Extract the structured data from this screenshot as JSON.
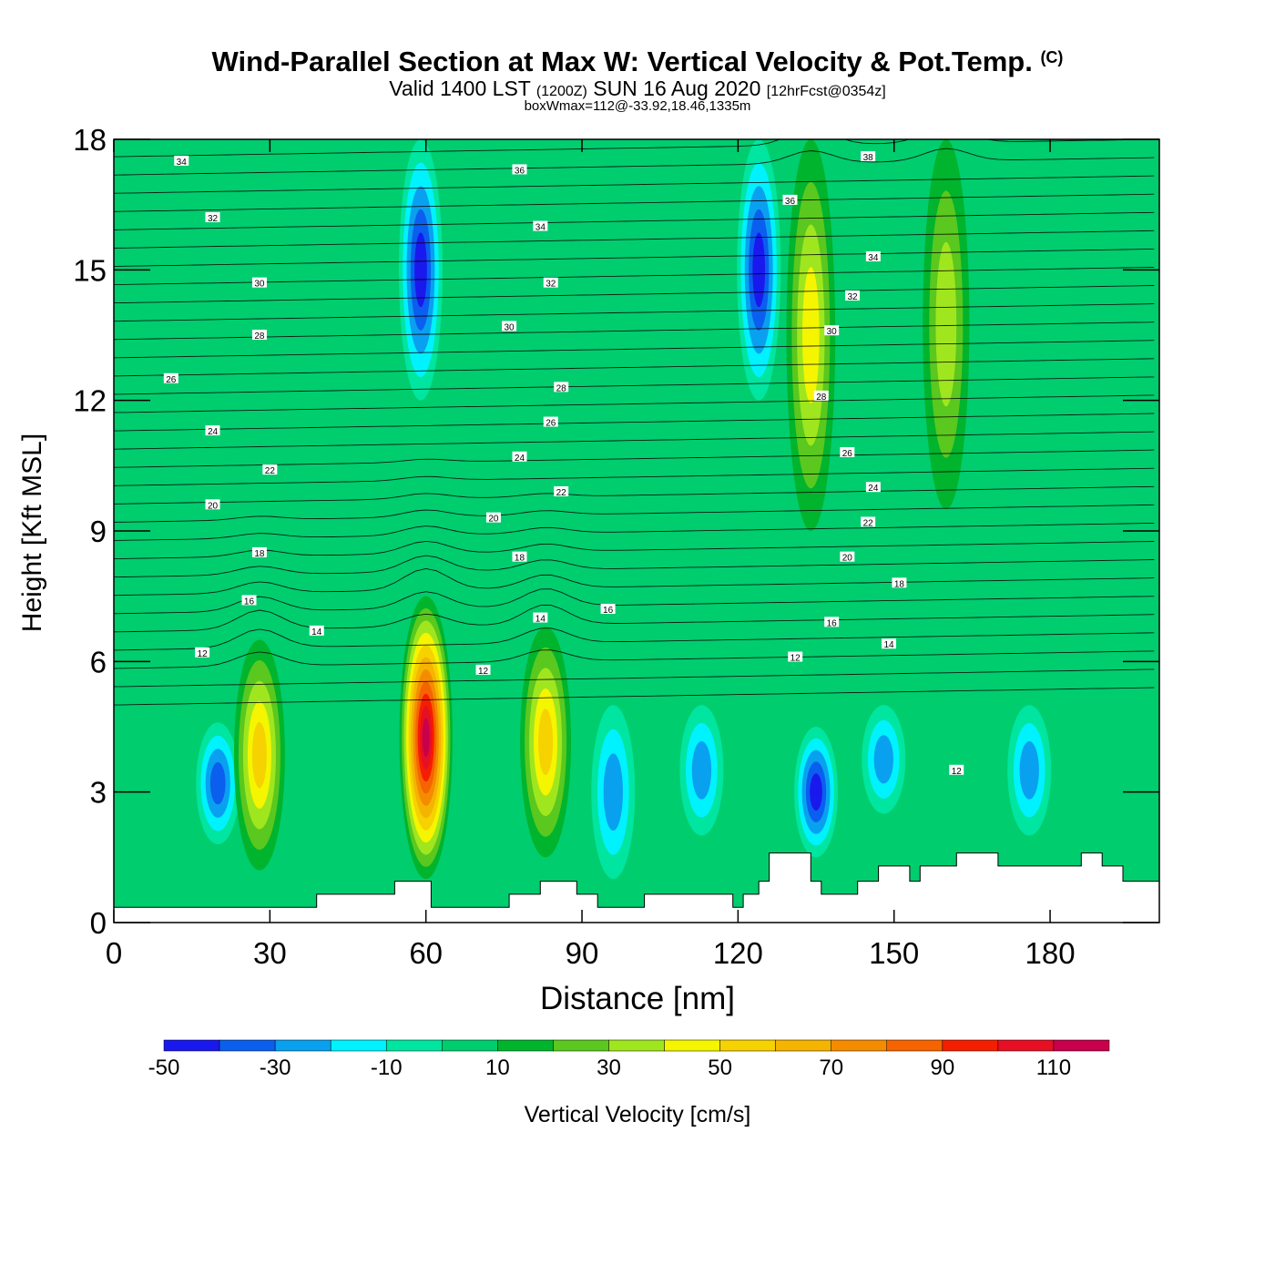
{
  "title": {
    "main": "Wind-Parallel Section at Max W: Vertical Velocity & Pot.Temp.",
    "copyright": "(C)",
    "valid_prefix": "Valid 1400 LST",
    "valid_utc": "(1200Z)",
    "valid_date": "SUN 16 Aug 2020",
    "forecast": "[12hrFcst@0354z]",
    "box_info": "boxWmax=112@-33.92,18.46,1335m"
  },
  "chart_data": {
    "type": "heatmap",
    "xlabel": "Distance [nm]",
    "ylabel": "Height [Kft MSL]",
    "xlim": [
      0,
      201
    ],
    "ylim": [
      0,
      18
    ],
    "x_ticks": [
      "0",
      "30",
      "60",
      "90",
      "120",
      "150",
      "180"
    ],
    "x_tick_values": [
      0,
      30,
      60,
      90,
      120,
      150,
      180
    ],
    "y_ticks": [
      "0",
      "3",
      "6",
      "9",
      "12",
      "15",
      "18"
    ],
    "y_tick_values": [
      0,
      3,
      6,
      9,
      12,
      15,
      18
    ],
    "colorbar": {
      "label": "Vertical Velocity [cm/s]",
      "bins": [
        -50,
        -40,
        -30,
        -20,
        -10,
        0,
        10,
        20,
        30,
        40,
        50,
        60,
        70,
        80,
        90,
        100,
        110,
        120
      ],
      "tick_labels": [
        "-50",
        "-30",
        "-10",
        "10",
        "30",
        "50",
        "70",
        "90",
        "110"
      ],
      "tick_values": [
        -50,
        -30,
        -10,
        10,
        30,
        50,
        70,
        90,
        110
      ],
      "colors": [
        "#1919ee",
        "#0a5fee",
        "#0aa0f0",
        "#00f2ff",
        "#00e5a0",
        "#00cd6e",
        "#00b42d",
        "#5ac81e",
        "#a0e61e",
        "#f5f500",
        "#f5d200",
        "#f5b400",
        "#f58c00",
        "#f56400",
        "#f51e00",
        "#e60f23",
        "#c8004b"
      ]
    },
    "updrafts": [
      {
        "x": 28,
        "z_bottom": 1.2,
        "z_top": 6.5,
        "w_max": 50
      },
      {
        "x": 60,
        "z_bottom": 1.0,
        "z_top": 7.5,
        "w_max": 112
      },
      {
        "x": 83,
        "z_bottom": 1.5,
        "z_top": 6.8,
        "w_max": 50
      },
      {
        "x": 134,
        "z_bottom": 9.0,
        "z_top": 18.0,
        "w_max": 40
      },
      {
        "x": 160,
        "z_bottom": 9.5,
        "z_top": 18.0,
        "w_max": 30
      }
    ],
    "downdrafts": [
      {
        "x": 20,
        "z_bottom": 1.8,
        "z_top": 4.6,
        "w_min": -30
      },
      {
        "x": 59,
        "z_bottom": 12.0,
        "z_top": 18.0,
        "w_min": -45
      },
      {
        "x": 96,
        "z_bottom": 1.0,
        "z_top": 5.0,
        "w_min": -20
      },
      {
        "x": 113,
        "z_bottom": 2.0,
        "z_top": 5.0,
        "w_min": -25
      },
      {
        "x": 124,
        "z_bottom": 12.0,
        "z_top": 18.0,
        "w_min": -40
      },
      {
        "x": 135,
        "z_bottom": 1.5,
        "z_top": 4.5,
        "w_min": -40
      },
      {
        "x": 148,
        "z_bottom": 2.5,
        "z_top": 5.0,
        "w_min": -25
      },
      {
        "x": 176,
        "z_bottom": 2.0,
        "z_top": 5.0,
        "w_min": -25
      }
    ],
    "theta_contour_labels": [
      {
        "text": "12",
        "x": 17,
        "z": 6.2
      },
      {
        "text": "14",
        "x": 39,
        "z": 6.7
      },
      {
        "text": "16",
        "x": 26,
        "z": 7.4
      },
      {
        "text": "18",
        "x": 28,
        "z": 8.5
      },
      {
        "text": "20",
        "x": 19,
        "z": 9.6
      },
      {
        "text": "22",
        "x": 30,
        "z": 10.4
      },
      {
        "text": "24",
        "x": 19,
        "z": 11.3
      },
      {
        "text": "26",
        "x": 11,
        "z": 12.5
      },
      {
        "text": "28",
        "x": 28,
        "z": 13.5
      },
      {
        "text": "30",
        "x": 28,
        "z": 14.7
      },
      {
        "text": "32",
        "x": 19,
        "z": 16.2
      },
      {
        "text": "34",
        "x": 13,
        "z": 17.5
      },
      {
        "text": "12",
        "x": 71,
        "z": 5.8
      },
      {
        "text": "14",
        "x": 82,
        "z": 7.0
      },
      {
        "text": "16",
        "x": 95,
        "z": 7.2
      },
      {
        "text": "18",
        "x": 78,
        "z": 8.4
      },
      {
        "text": "20",
        "x": 73,
        "z": 9.3
      },
      {
        "text": "22",
        "x": 86,
        "z": 9.9
      },
      {
        "text": "24",
        "x": 78,
        "z": 10.7
      },
      {
        "text": "26",
        "x": 84,
        "z": 11.5
      },
      {
        "text": "28",
        "x": 86,
        "z": 12.3
      },
      {
        "text": "30",
        "x": 76,
        "z": 13.7
      },
      {
        "text": "32",
        "x": 84,
        "z": 14.7
      },
      {
        "text": "34",
        "x": 82,
        "z": 16.0
      },
      {
        "text": "36",
        "x": 78,
        "z": 17.3
      },
      {
        "text": "12",
        "x": 131,
        "z": 6.1
      },
      {
        "text": "14",
        "x": 149,
        "z": 6.4
      },
      {
        "text": "16",
        "x": 138,
        "z": 6.9
      },
      {
        "text": "18",
        "x": 151,
        "z": 7.8
      },
      {
        "text": "20",
        "x": 141,
        "z": 8.4
      },
      {
        "text": "22",
        "x": 145,
        "z": 9.2
      },
      {
        "text": "24",
        "x": 146,
        "z": 10.0
      },
      {
        "text": "26",
        "x": 141,
        "z": 10.8
      },
      {
        "text": "28",
        "x": 136,
        "z": 12.1
      },
      {
        "text": "30",
        "x": 138,
        "z": 13.6
      },
      {
        "text": "32",
        "x": 142,
        "z": 14.4
      },
      {
        "text": "34",
        "x": 146,
        "z": 15.3
      },
      {
        "text": "36",
        "x": 130,
        "z": 16.6
      },
      {
        "text": "38",
        "x": 145,
        "z": 17.6
      },
      {
        "text": "12",
        "x": 162,
        "z": 3.5
      }
    ],
    "terrain": [
      [
        0,
        0.35
      ],
      [
        39,
        0.35
      ],
      [
        39,
        0.65
      ],
      [
        54,
        0.65
      ],
      [
        54,
        0.95
      ],
      [
        61,
        0.95
      ],
      [
        61,
        0.35
      ],
      [
        76,
        0.35
      ],
      [
        76,
        0.65
      ],
      [
        82,
        0.65
      ],
      [
        82,
        0.95
      ],
      [
        89,
        0.95
      ],
      [
        89,
        0.65
      ],
      [
        93,
        0.65
      ],
      [
        93,
        0.35
      ],
      [
        102,
        0.35
      ],
      [
        102,
        0.65
      ],
      [
        119,
        0.65
      ],
      [
        119,
        0.35
      ],
      [
        121,
        0.35
      ],
      [
        121,
        0.65
      ],
      [
        124,
        0.65
      ],
      [
        124,
        0.95
      ],
      [
        126,
        0.95
      ],
      [
        126,
        1.6
      ],
      [
        134,
        1.6
      ],
      [
        134,
        0.95
      ],
      [
        136,
        0.95
      ],
      [
        136,
        0.65
      ],
      [
        143,
        0.65
      ],
      [
        143,
        0.95
      ],
      [
        147,
        0.95
      ],
      [
        147,
        1.3
      ],
      [
        153,
        1.3
      ],
      [
        153,
        0.95
      ],
      [
        155,
        0.95
      ],
      [
        155,
        1.3
      ],
      [
        162,
        1.3
      ],
      [
        162,
        1.6
      ],
      [
        170,
        1.6
      ],
      [
        170,
        1.3
      ],
      [
        186,
        1.3
      ],
      [
        186,
        1.6
      ],
      [
        190,
        1.6
      ],
      [
        190,
        1.3
      ],
      [
        194,
        1.3
      ],
      [
        194,
        0.95
      ],
      [
        201,
        0.95
      ]
    ]
  }
}
